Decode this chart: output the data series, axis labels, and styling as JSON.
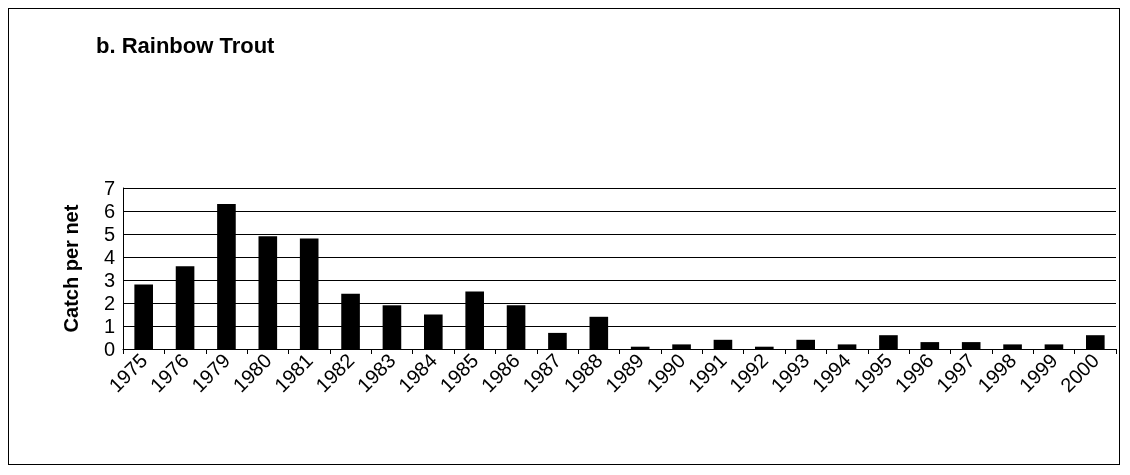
{
  "chart_data": {
    "type": "bar",
    "title": "b. Rainbow Trout",
    "ylabel": "Catch per net",
    "categories": [
      "1975",
      "1976",
      "1979",
      "1980",
      "1981",
      "1982",
      "1983",
      "1984",
      "1985",
      "1986",
      "1987",
      "1988",
      "1989",
      "1990",
      "1991",
      "1992",
      "1993",
      "1994",
      "1995",
      "1996",
      "1997",
      "1998",
      "1999",
      "2000"
    ],
    "values": [
      2.8,
      3.6,
      6.3,
      4.9,
      4.8,
      2.4,
      1.9,
      1.5,
      2.5,
      1.9,
      0.7,
      1.4,
      0.1,
      0.2,
      0.4,
      0.1,
      0.4,
      0.2,
      0.6,
      0.3,
      0.3,
      0.2,
      0.2,
      0.6
    ],
    "color": "#000000",
    "ylim": [
      0,
      7
    ],
    "yticks": [
      0,
      1,
      2,
      3,
      4,
      5,
      6,
      7
    ],
    "grid": "y"
  }
}
